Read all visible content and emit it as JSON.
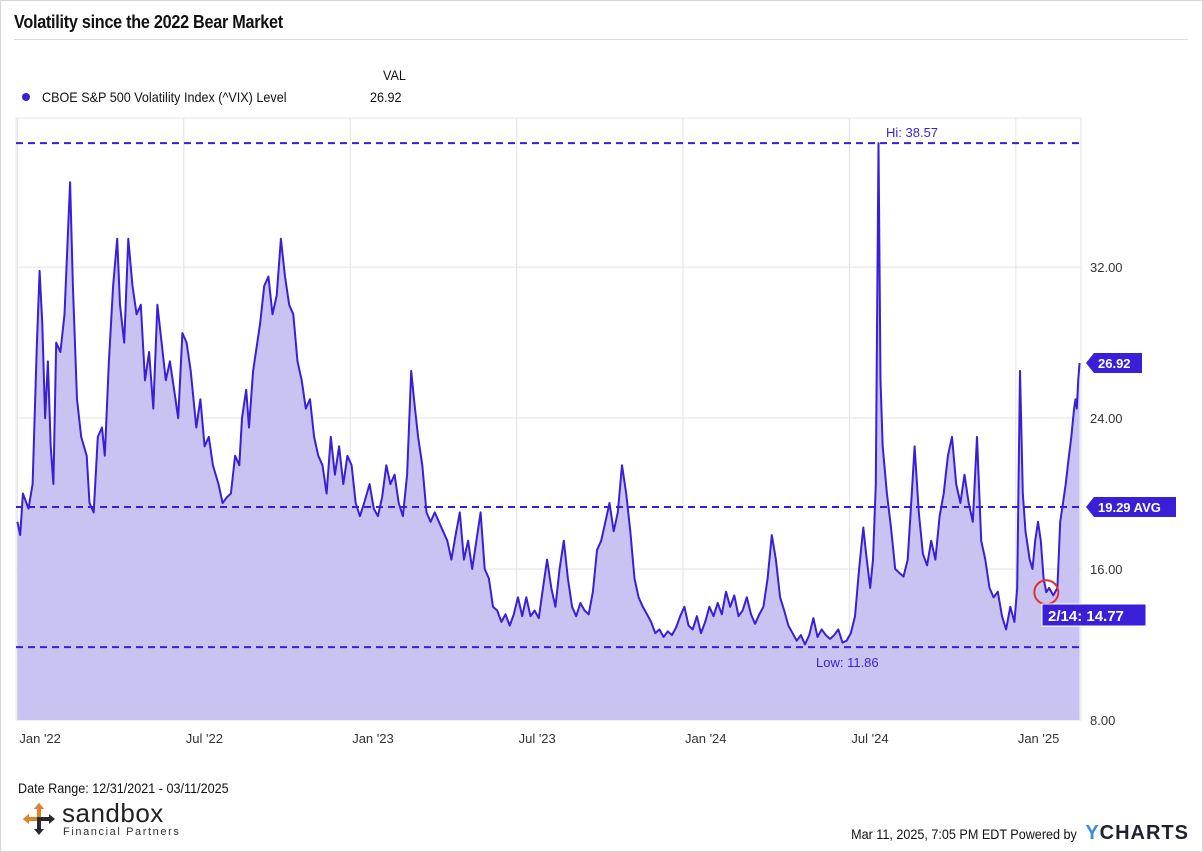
{
  "header": {
    "title": "Volatility since the 2022 Bear Market"
  },
  "legend": {
    "column_header": "VAL",
    "series_label": "CBOE S&P 500 Volatility Index (^VIX) Level",
    "series_value": "26.92",
    "marker_color": "#3a1fd8"
  },
  "footer": {
    "date_range": "Date Range: 12/31/2021 - 03/11/2025",
    "timestamp": "Mar 11, 2025, 7:05 PM EDT Powered by",
    "ycharts_y": "Y",
    "ycharts_rest": "CHARTS",
    "logo_name": "sandbox",
    "logo_sub": "Financial Partners"
  },
  "colors": {
    "line": "#3a1fd8",
    "fill": "#c9c3f2",
    "plot_bg": "#c9c3f2",
    "grid": "#e2e2e2",
    "badge": "#3a1fd8",
    "highlight_ring": "#e0302f",
    "logo_orange": "#e0822c",
    "logo_dark": "#2a2a2a"
  },
  "chart_data": {
    "type": "area",
    "title": "Volatility since the 2022 Bear Market",
    "series": [
      {
        "name": "CBOE S&P 500 Volatility Index (^VIX) Level",
        "last_value": 26.92
      }
    ],
    "x_tick_labels": [
      "Jan '22",
      "Jul '22",
      "Jan '23",
      "Jul '23",
      "Jan '24",
      "Jul '24",
      "Jan '25"
    ],
    "x_tick_months": [
      0,
      6,
      12,
      18,
      24,
      30,
      36
    ],
    "y_tick_labels": [
      "8.00",
      "16.00",
      "24.00",
      "32.00"
    ],
    "y_ticks": [
      8,
      16,
      24,
      32
    ],
    "ylim": [
      8,
      39.9
    ],
    "xlim_months": [
      -0.05,
      38.35
    ],
    "grid": true,
    "points": [
      [
        0.0,
        18.5
      ],
      [
        0.1,
        17.8
      ],
      [
        0.2,
        20.0
      ],
      [
        0.4,
        19.2
      ],
      [
        0.55,
        20.5
      ],
      [
        0.7,
        27.8
      ],
      [
        0.8,
        31.8
      ],
      [
        0.9,
        29.0
      ],
      [
        1.0,
        24.0
      ],
      [
        1.1,
        27.0
      ],
      [
        1.2,
        22.5
      ],
      [
        1.3,
        20.5
      ],
      [
        1.4,
        28.0
      ],
      [
        1.55,
        27.5
      ],
      [
        1.7,
        29.5
      ],
      [
        1.8,
        33.0
      ],
      [
        1.9,
        36.5
      ],
      [
        2.0,
        31.0
      ],
      [
        2.15,
        25.0
      ],
      [
        2.3,
        23.0
      ],
      [
        2.5,
        22.0
      ],
      [
        2.6,
        19.5
      ],
      [
        2.75,
        19.0
      ],
      [
        2.9,
        23.0
      ],
      [
        3.05,
        23.5
      ],
      [
        3.15,
        22.0
      ],
      [
        3.3,
        27.0
      ],
      [
        3.45,
        31.0
      ],
      [
        3.6,
        33.5
      ],
      [
        3.7,
        30.0
      ],
      [
        3.85,
        28.0
      ],
      [
        4.0,
        33.5
      ],
      [
        4.15,
        31.0
      ],
      [
        4.3,
        29.5
      ],
      [
        4.45,
        30.0
      ],
      [
        4.6,
        26.0
      ],
      [
        4.75,
        27.5
      ],
      [
        4.9,
        24.5
      ],
      [
        5.05,
        30.0
      ],
      [
        5.2,
        28.0
      ],
      [
        5.35,
        26.0
      ],
      [
        5.5,
        27.0
      ],
      [
        5.65,
        25.5
      ],
      [
        5.8,
        24.0
      ],
      [
        5.95,
        28.5
      ],
      [
        6.1,
        28.0
      ],
      [
        6.25,
        26.5
      ],
      [
        6.45,
        23.5
      ],
      [
        6.6,
        25.0
      ],
      [
        6.75,
        22.5
      ],
      [
        6.9,
        23.0
      ],
      [
        7.05,
        21.5
      ],
      [
        7.25,
        20.5
      ],
      [
        7.4,
        19.5
      ],
      [
        7.55,
        19.8
      ],
      [
        7.7,
        20.0
      ],
      [
        7.85,
        22.0
      ],
      [
        8.0,
        21.5
      ],
      [
        8.1,
        24.0
      ],
      [
        8.25,
        25.5
      ],
      [
        8.35,
        23.5
      ],
      [
        8.5,
        26.5
      ],
      [
        8.6,
        27.5
      ],
      [
        8.75,
        29.0
      ],
      [
        8.9,
        31.0
      ],
      [
        9.05,
        31.5
      ],
      [
        9.2,
        29.5
      ],
      [
        9.35,
        30.5
      ],
      [
        9.5,
        33.5
      ],
      [
        9.65,
        31.5
      ],
      [
        9.8,
        30.0
      ],
      [
        9.95,
        29.5
      ],
      [
        10.1,
        27.0
      ],
      [
        10.25,
        26.0
      ],
      [
        10.4,
        24.5
      ],
      [
        10.55,
        25.0
      ],
      [
        10.7,
        23.0
      ],
      [
        10.85,
        22.0
      ],
      [
        11.0,
        21.5
      ],
      [
        11.15,
        20.0
      ],
      [
        11.3,
        23.0
      ],
      [
        11.45,
        21.0
      ],
      [
        11.6,
        22.5
      ],
      [
        11.75,
        20.5
      ],
      [
        11.9,
        22.0
      ],
      [
        12.05,
        21.5
      ],
      [
        12.2,
        19.5
      ],
      [
        12.35,
        18.8
      ],
      [
        12.5,
        19.5
      ],
      [
        12.7,
        20.5
      ],
      [
        12.85,
        19.2
      ],
      [
        13.0,
        18.8
      ],
      [
        13.15,
        19.8
      ],
      [
        13.3,
        21.5
      ],
      [
        13.45,
        20.5
      ],
      [
        13.6,
        21.0
      ],
      [
        13.75,
        19.5
      ],
      [
        13.9,
        18.8
      ],
      [
        14.05,
        21.0
      ],
      [
        14.2,
        26.5
      ],
      [
        14.3,
        25.0
      ],
      [
        14.45,
        23.0
      ],
      [
        14.6,
        21.5
      ],
      [
        14.75,
        19.0
      ],
      [
        14.9,
        18.5
      ],
      [
        15.05,
        19.0
      ],
      [
        15.2,
        18.5
      ],
      [
        15.35,
        18.0
      ],
      [
        15.5,
        17.5
      ],
      [
        15.65,
        16.5
      ],
      [
        15.8,
        17.8
      ],
      [
        15.95,
        19.0
      ],
      [
        16.1,
        16.5
      ],
      [
        16.25,
        17.5
      ],
      [
        16.4,
        16.0
      ],
      [
        16.55,
        17.5
      ],
      [
        16.7,
        19.0
      ],
      [
        16.85,
        16.0
      ],
      [
        17.0,
        15.5
      ],
      [
        17.15,
        14.0
      ],
      [
        17.3,
        13.8
      ],
      [
        17.45,
        13.2
      ],
      [
        17.6,
        13.6
      ],
      [
        17.75,
        13.0
      ],
      [
        17.9,
        13.6
      ],
      [
        18.05,
        14.5
      ],
      [
        18.2,
        13.5
      ],
      [
        18.35,
        14.5
      ],
      [
        18.5,
        13.5
      ],
      [
        18.65,
        13.8
      ],
      [
        18.8,
        13.4
      ],
      [
        18.95,
        15.0
      ],
      [
        19.1,
        16.5
      ],
      [
        19.25,
        15.0
      ],
      [
        19.4,
        14.0
      ],
      [
        19.55,
        16.0
      ],
      [
        19.7,
        17.5
      ],
      [
        19.85,
        15.5
      ],
      [
        20.0,
        14.0
      ],
      [
        20.15,
        13.5
      ],
      [
        20.3,
        14.2
      ],
      [
        20.45,
        13.8
      ],
      [
        20.6,
        13.6
      ],
      [
        20.75,
        14.8
      ],
      [
        20.9,
        17.0
      ],
      [
        21.05,
        17.5
      ],
      [
        21.2,
        18.5
      ],
      [
        21.35,
        19.5
      ],
      [
        21.5,
        18.0
      ],
      [
        21.65,
        19.0
      ],
      [
        21.8,
        21.5
      ],
      [
        21.95,
        20.0
      ],
      [
        22.1,
        18.0
      ],
      [
        22.25,
        15.5
      ],
      [
        22.4,
        14.5
      ],
      [
        22.55,
        14.0
      ],
      [
        22.7,
        13.6
      ],
      [
        22.85,
        13.2
      ],
      [
        23.0,
        12.6
      ],
      [
        23.15,
        12.8
      ],
      [
        23.3,
        12.4
      ],
      [
        23.45,
        12.7
      ],
      [
        23.6,
        12.5
      ],
      [
        23.75,
        12.9
      ],
      [
        23.9,
        13.5
      ],
      [
        24.05,
        14.0
      ],
      [
        24.2,
        13.0
      ],
      [
        24.35,
        12.8
      ],
      [
        24.5,
        13.5
      ],
      [
        24.65,
        12.6
      ],
      [
        24.8,
        13.2
      ],
      [
        24.95,
        14.0
      ],
      [
        25.1,
        13.5
      ],
      [
        25.25,
        14.2
      ],
      [
        25.4,
        13.6
      ],
      [
        25.55,
        14.8
      ],
      [
        25.7,
        14.0
      ],
      [
        25.85,
        14.6
      ],
      [
        26.0,
        13.5
      ],
      [
        26.15,
        13.8
      ],
      [
        26.3,
        14.5
      ],
      [
        26.45,
        13.6
      ],
      [
        26.6,
        13.1
      ],
      [
        26.75,
        13.6
      ],
      [
        26.9,
        14.0
      ],
      [
        27.05,
        15.5
      ],
      [
        27.2,
        17.8
      ],
      [
        27.35,
        16.5
      ],
      [
        27.5,
        14.5
      ],
      [
        27.65,
        13.8
      ],
      [
        27.8,
        13.0
      ],
      [
        27.95,
        12.6
      ],
      [
        28.1,
        12.2
      ],
      [
        28.25,
        12.5
      ],
      [
        28.4,
        12.0
      ],
      [
        28.55,
        12.5
      ],
      [
        28.7,
        13.4
      ],
      [
        28.85,
        12.4
      ],
      [
        29.0,
        12.8
      ],
      [
        29.15,
        12.5
      ],
      [
        29.3,
        12.3
      ],
      [
        29.45,
        12.5
      ],
      [
        29.6,
        12.8
      ],
      [
        29.75,
        12.1
      ],
      [
        29.9,
        12.2
      ],
      [
        30.05,
        12.6
      ],
      [
        30.2,
        13.5
      ],
      [
        30.35,
        16.0
      ],
      [
        30.5,
        18.2
      ],
      [
        30.6,
        16.8
      ],
      [
        30.75,
        15.0
      ],
      [
        30.85,
        16.5
      ],
      [
        30.95,
        20.5
      ],
      [
        31.05,
        38.57
      ],
      [
        31.12,
        26.0
      ],
      [
        31.2,
        22.5
      ],
      [
        31.35,
        20.0
      ],
      [
        31.5,
        18.2
      ],
      [
        31.65,
        16.0
      ],
      [
        31.8,
        15.8
      ],
      [
        31.95,
        15.6
      ],
      [
        32.1,
        16.5
      ],
      [
        32.25,
        20.0
      ],
      [
        32.35,
        22.5
      ],
      [
        32.5,
        19.0
      ],
      [
        32.65,
        16.8
      ],
      [
        32.8,
        16.2
      ],
      [
        32.95,
        17.5
      ],
      [
        33.1,
        16.5
      ],
      [
        33.25,
        18.8
      ],
      [
        33.4,
        20.0
      ],
      [
        33.55,
        22.0
      ],
      [
        33.7,
        23.0
      ],
      [
        33.85,
        20.5
      ],
      [
        34.0,
        19.5
      ],
      [
        34.15,
        21.0
      ],
      [
        34.3,
        19.5
      ],
      [
        34.45,
        18.5
      ],
      [
        34.6,
        23.0
      ],
      [
        34.75,
        17.5
      ],
      [
        34.9,
        16.5
      ],
      [
        35.05,
        15.0
      ],
      [
        35.2,
        14.5
      ],
      [
        35.35,
        14.8
      ],
      [
        35.5,
        13.5
      ],
      [
        35.65,
        12.8
      ],
      [
        35.8,
        14.0
      ],
      [
        35.95,
        13.2
      ],
      [
        36.05,
        15.0
      ],
      [
        36.15,
        26.5
      ],
      [
        36.25,
        20.0
      ],
      [
        36.35,
        18.0
      ],
      [
        36.5,
        16.5
      ],
      [
        36.6,
        16.0
      ],
      [
        36.7,
        17.5
      ],
      [
        36.8,
        18.5
      ],
      [
        36.9,
        17.5
      ],
      [
        37.0,
        15.5
      ],
      [
        37.1,
        14.77
      ],
      [
        37.2,
        15.0
      ],
      [
        37.35,
        14.6
      ],
      [
        37.5,
        15.0
      ],
      [
        37.6,
        18.5
      ],
      [
        37.7,
        19.5
      ],
      [
        37.8,
        20.5
      ],
      [
        37.9,
        21.8
      ],
      [
        38.0,
        23.0
      ],
      [
        38.1,
        24.5
      ],
      [
        38.15,
        25.0
      ],
      [
        38.2,
        24.5
      ],
      [
        38.25,
        26.0
      ],
      [
        38.3,
        26.92
      ]
    ],
    "annotations": {
      "high": {
        "label": "Hi: 38.57",
        "value": 38.57
      },
      "low": {
        "label": "Low: 11.86",
        "value": 11.86
      },
      "average": {
        "label": "19.29 AVG",
        "value": 19.29
      },
      "last": {
        "label": "26.92",
        "value": 26.92
      },
      "callout": {
        "label": "2/14: 14.77",
        "value": 14.77,
        "x_month": 37.1
      }
    }
  }
}
